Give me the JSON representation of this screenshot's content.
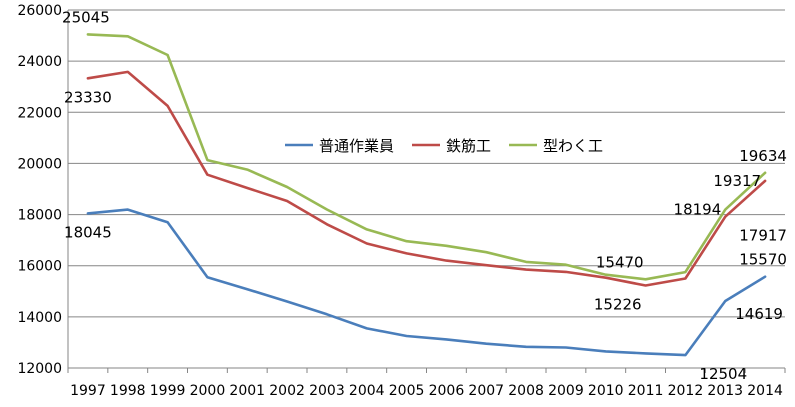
{
  "chart_data": {
    "type": "line",
    "title": "",
    "xlabel": "",
    "ylabel": "",
    "categories": [
      "1997",
      "1998",
      "1999",
      "2000",
      "2001",
      "2002",
      "2003",
      "2004",
      "2005",
      "2006",
      "2007",
      "2008",
      "2009",
      "2010",
      "2011",
      "2012",
      "2013",
      "2014"
    ],
    "ylim": [
      12000,
      26000
    ],
    "yticks": [
      12000,
      14000,
      16000,
      18000,
      20000,
      22000,
      24000,
      26000
    ],
    "grid": true,
    "legend_placement": "center",
    "series": [
      {
        "name": "普通作業員",
        "color": "#4a7ebb",
        "values": [
          18045,
          18194,
          17700,
          15550,
          15080,
          14600,
          14100,
          13550,
          13250,
          13120,
          12950,
          12830,
          12800,
          12650,
          12570,
          12504,
          14619,
          15570
        ]
      },
      {
        "name": "鉄筋工",
        "color": "#be4b48",
        "values": [
          23330,
          23580,
          22250,
          19560,
          19040,
          18530,
          17620,
          16870,
          16480,
          16200,
          16020,
          15850,
          15760,
          15530,
          15226,
          15500,
          17917,
          19317
        ]
      },
      {
        "name": "型わく工",
        "color": "#98b954",
        "values": [
          25045,
          24970,
          24240,
          20130,
          19760,
          19080,
          18200,
          17420,
          16960,
          16780,
          16530,
          16150,
          16040,
          15650,
          15470,
          15750,
          18194,
          19634
        ]
      }
    ],
    "data_labels": [
      {
        "text": "25045",
        "series": 2,
        "index": 0,
        "pos": "above"
      },
      {
        "text": "23330",
        "series": 1,
        "index": 0,
        "pos": "below"
      },
      {
        "text": "18045",
        "series": 0,
        "index": 0,
        "pos": "below"
      },
      {
        "text": "15470",
        "series": 2,
        "index": 14,
        "pos": "above-left"
      },
      {
        "text": "15226",
        "series": 1,
        "index": 14,
        "pos": "below-left"
      },
      {
        "text": "12504",
        "series": 0,
        "index": 15,
        "pos": "below-right"
      },
      {
        "text": "18194",
        "series": 2,
        "index": 16,
        "pos": "left"
      },
      {
        "text": "17917",
        "series": 1,
        "index": 16,
        "pos": "below-right"
      },
      {
        "text": "14619",
        "series": 0,
        "index": 16,
        "pos": "right"
      },
      {
        "text": "19634",
        "series": 2,
        "index": 17,
        "pos": "above"
      },
      {
        "text": "19317",
        "series": 1,
        "index": 17,
        "pos": "left"
      },
      {
        "text": "15570",
        "series": 0,
        "index": 17,
        "pos": "above"
      }
    ]
  }
}
